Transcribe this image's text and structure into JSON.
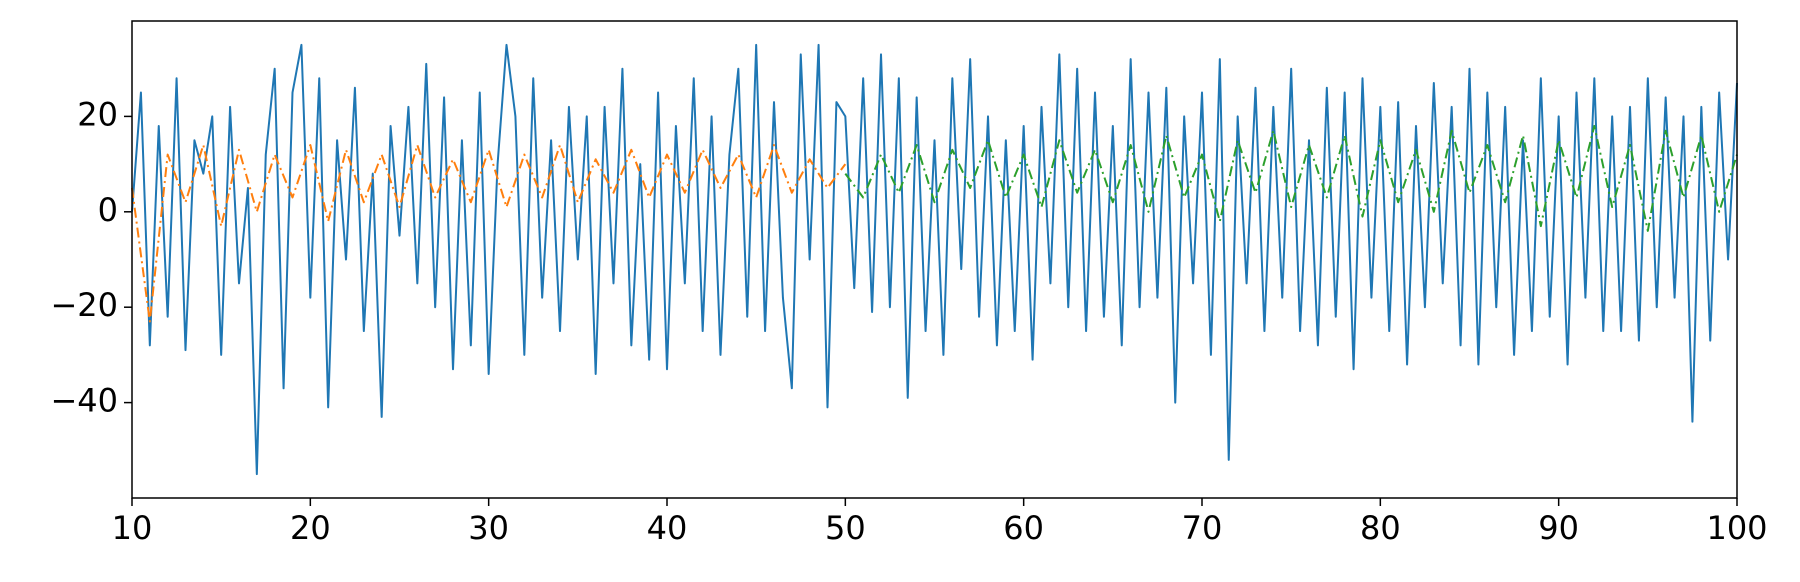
{
  "chart_data": {
    "type": "line",
    "xlim": [
      10,
      100
    ],
    "ylim": [
      -60,
      40
    ],
    "xticks": [
      10,
      20,
      30,
      40,
      50,
      60,
      70,
      80,
      90,
      100
    ],
    "yticks": [
      {
        "value": -40,
        "label": "−40"
      },
      {
        "value": -20,
        "label": "−20"
      },
      0,
      20
    ],
    "series": [
      {
        "color": "#1f77b4",
        "dash": "solid",
        "x": [
          10,
          10.5,
          11,
          11.5,
          12,
          12.5,
          13,
          13.5,
          14,
          14.5,
          15,
          15.5,
          16,
          16.5,
          17,
          17.5,
          18,
          18.5,
          19,
          19.5,
          20,
          20.5,
          21,
          21.5,
          22,
          22.5,
          23,
          23.5,
          24,
          24.5,
          25,
          25.5,
          26,
          26.5,
          27,
          27.5,
          28,
          28.5,
          29,
          29.5,
          30,
          30.5,
          31,
          31.5,
          32,
          32.5,
          33,
          33.5,
          34,
          34.5,
          35,
          35.5,
          36,
          36.5,
          37,
          37.5,
          38,
          38.5,
          39,
          39.5,
          40,
          40.5,
          41,
          41.5,
          42,
          42.5,
          43,
          43.5,
          44,
          44.5,
          45,
          45.5,
          46,
          46.5,
          47,
          47.5,
          48,
          48.5,
          49,
          49.5,
          50,
          50.5,
          51,
          51.5,
          52,
          52.5,
          53,
          53.5,
          54,
          54.5,
          55,
          55.5,
          56,
          56.5,
          57,
          57.5,
          58,
          58.5,
          59,
          59.5,
          60,
          60.5,
          61,
          61.5,
          62,
          62.5,
          63,
          63.5,
          64,
          64.5,
          65,
          65.5,
          66,
          66.5,
          67,
          67.5,
          68,
          68.5,
          69,
          69.5,
          70,
          70.5,
          71,
          71.5,
          72,
          72.5,
          73,
          73.5,
          74,
          74.5,
          75,
          75.5,
          76,
          76.5,
          77,
          77.5,
          78,
          78.5,
          79,
          79.5,
          80,
          80.5,
          81,
          81.5,
          82,
          82.5,
          83,
          83.5,
          84,
          84.5,
          85,
          85.5,
          86,
          86.5,
          87,
          87.5,
          88,
          88.5,
          89,
          89.5,
          90,
          90.5,
          91,
          91.5,
          92,
          92.5,
          93,
          93.5,
          94,
          94.5,
          95,
          95.5,
          96,
          96.5,
          97,
          97.5,
          98,
          98.5,
          99,
          99.5,
          100
        ],
        "values": [
          0,
          25,
          -28,
          18,
          -22,
          28,
          -29,
          15,
          8,
          20,
          -30,
          22,
          -15,
          5,
          -55,
          12,
          30,
          -37,
          25,
          35,
          -18,
          28,
          -41,
          15,
          -10,
          26,
          -25,
          8,
          -43,
          18,
          -5,
          22,
          -15,
          31,
          -20,
          24,
          -33,
          15,
          -28,
          25,
          -34,
          10,
          35,
          20,
          -30,
          28,
          -18,
          15,
          -25,
          22,
          -10,
          20,
          -34,
          22,
          -15,
          30,
          -28,
          10,
          -31,
          25,
          -33,
          18,
          -15,
          28,
          -25,
          20,
          -30,
          12,
          30,
          -22,
          35,
          -25,
          23,
          -18,
          -37,
          33,
          -10,
          35,
          -41,
          23,
          20,
          -16,
          28,
          -21,
          33,
          -20,
          28,
          -39,
          24,
          -25,
          15,
          -30,
          28,
          -12,
          32,
          -22,
          20,
          -28,
          15,
          -25,
          18,
          -31,
          22,
          -15,
          33,
          -20,
          30,
          -25,
          25,
          -22,
          18,
          -28,
          32,
          -20,
          25,
          -18,
          26,
          -40,
          20,
          -15,
          25,
          -30,
          32,
          -52,
          20,
          -15,
          26,
          -25,
          22,
          -18,
          30,
          -25,
          15,
          -28,
          26,
          -22,
          25,
          -33,
          28,
          -18,
          22,
          -25,
          23,
          -32,
          18,
          -20,
          27,
          -15,
          22,
          -28,
          30,
          -32,
          25,
          -20,
          22,
          -30,
          15,
          -25,
          28,
          -22,
          20,
          -32,
          25,
          -18,
          28,
          -25,
          20,
          -25,
          22,
          -27,
          28,
          -20,
          24,
          -18,
          20,
          -44,
          22,
          -27,
          25,
          -10,
          27
        ]
      },
      {
        "color": "#ff7f0e",
        "dash": "dashdot",
        "x": [
          10,
          11,
          12,
          13,
          14,
          15,
          16,
          17,
          18,
          19,
          20,
          21,
          22,
          23,
          24,
          25,
          26,
          27,
          28,
          29,
          30,
          31,
          32,
          33,
          34,
          35,
          36,
          37,
          38,
          39,
          40,
          41,
          42,
          43,
          44,
          45,
          46,
          47,
          48,
          49,
          50
        ],
        "values": [
          5,
          -23,
          12,
          2,
          14,
          -3,
          13,
          0,
          12,
          3,
          14,
          -2,
          13,
          2,
          12,
          1,
          14,
          3,
          11,
          2,
          13,
          1,
          12,
          3,
          14,
          2,
          11,
          4,
          13,
          3,
          12,
          4,
          13,
          5,
          12,
          3,
          14,
          4,
          11,
          5,
          10
        ]
      },
      {
        "color": "#2ca02c",
        "dash": "dashdot",
        "x": [
          50,
          51,
          52,
          53,
          54,
          55,
          56,
          57,
          58,
          59,
          60,
          61,
          62,
          63,
          64,
          65,
          66,
          67,
          68,
          69,
          70,
          71,
          72,
          73,
          74,
          75,
          76,
          77,
          78,
          79,
          80,
          81,
          82,
          83,
          84,
          85,
          86,
          87,
          88,
          89,
          90,
          91,
          92,
          93,
          94,
          95,
          96,
          97,
          98,
          99,
          100
        ],
        "values": [
          8,
          3,
          12,
          4,
          14,
          2,
          13,
          5,
          15,
          3,
          12,
          1,
          15,
          4,
          13,
          2,
          14,
          0,
          16,
          3,
          12,
          -2,
          15,
          4,
          17,
          1,
          14,
          3,
          16,
          -1,
          15,
          2,
          13,
          0,
          17,
          4,
          14,
          2,
          16,
          -3,
          15,
          3,
          18,
          1,
          14,
          -4,
          17,
          3,
          16,
          0,
          12
        ]
      }
    ]
  }
}
